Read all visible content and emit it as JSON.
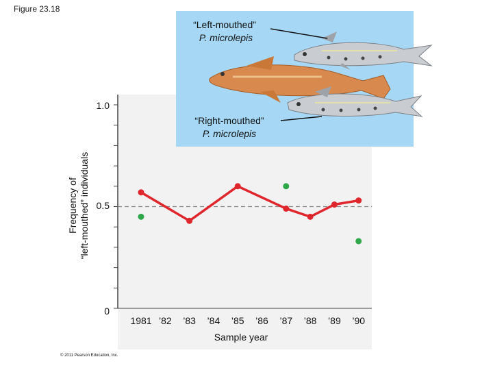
{
  "figure_label": "Figure 23.18",
  "copyright": "© 2011 Pearson Education, Inc.",
  "inset": {
    "left_label_line1": "“Left-mouthed”",
    "left_label_line2": "P. microlepis",
    "right_label_line1": "“Right-mouthed”",
    "right_label_line2": "P. microlepis"
  },
  "colors": {
    "red_series": "#e0262d",
    "green_series": "#2ea84a",
    "plot_bg": "#f2f2f2",
    "inset_bg": "#a6d8f5"
  },
  "chart_data": {
    "type": "line",
    "xlabel": "Sample year",
    "ylabel_line1": "Frequency of",
    "ylabel_line2": "“left-mouthed” individuals",
    "ylim": [
      0,
      1.0
    ],
    "y_ticks": [
      "0",
      "0.5",
      "1.0"
    ],
    "reference_line": 0.5,
    "categories": [
      "1981",
      "’82",
      "’83",
      "’84",
      "’85",
      "’86",
      "’87",
      "’88",
      "’89",
      "’90"
    ],
    "series": [
      {
        "color": "#e0262d",
        "style": "line",
        "points": [
          {
            "x": "1981",
            "y": 0.57
          },
          {
            "x": "’83",
            "y": 0.43
          },
          {
            "x": "’85",
            "y": 0.6
          },
          {
            "x": "’87",
            "y": 0.49
          },
          {
            "x": "’88",
            "y": 0.45
          },
          {
            "x": "’89",
            "y": 0.51
          },
          {
            "x": "’90",
            "y": 0.53
          }
        ]
      },
      {
        "color": "#2ea84a",
        "style": "scatter",
        "points": [
          {
            "x": "1981",
            "y": 0.45
          },
          {
            "x": "’87",
            "y": 0.6
          },
          {
            "x": "’90",
            "y": 0.33
          }
        ]
      }
    ]
  }
}
